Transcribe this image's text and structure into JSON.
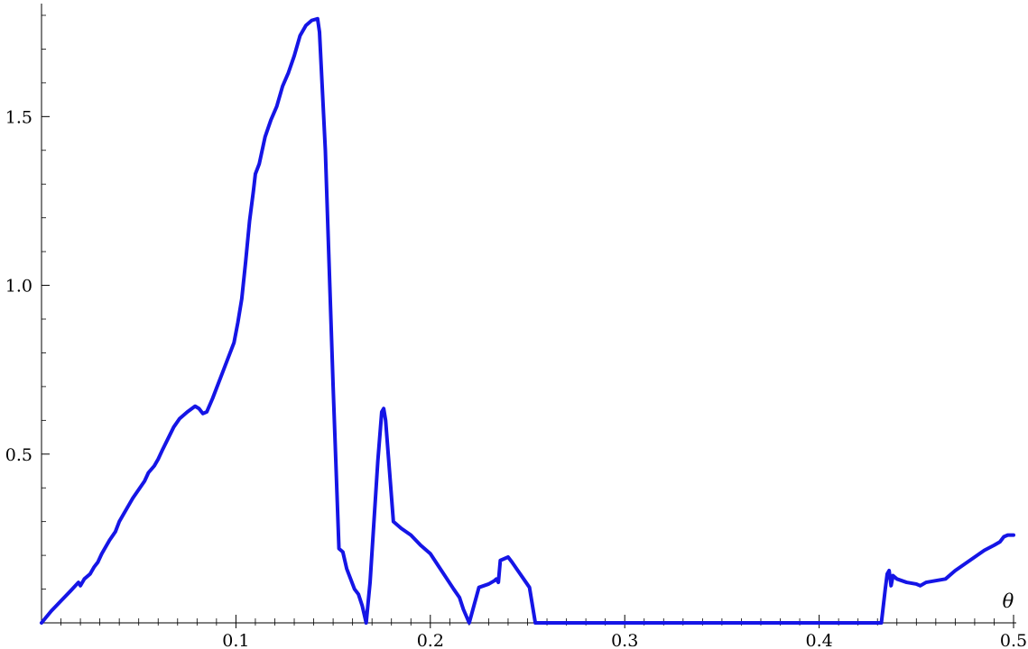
{
  "chart_data": {
    "type": "line",
    "title": "",
    "xlabel": "θ",
    "ylabel": "",
    "xlim": [
      0,
      0.5
    ],
    "ylim": [
      0,
      1.8
    ],
    "x_ticks": [
      {
        "value": 0.1,
        "label": "0.1"
      },
      {
        "value": 0.2,
        "label": "0.2"
      },
      {
        "value": 0.3,
        "label": "0.3"
      },
      {
        "value": 0.4,
        "label": "0.4"
      },
      {
        "value": 0.5,
        "label": "0.5"
      }
    ],
    "y_ticks": [
      {
        "value": 0.5,
        "label": "0.5"
      },
      {
        "value": 1.0,
        "label": "1.0"
      },
      {
        "value": 1.5,
        "label": "1.5"
      }
    ],
    "grid": false,
    "legend": "none",
    "line_color": "#1515e6",
    "series": [
      {
        "x": [
          0,
          0.005,
          0.01,
          0.015,
          0.019,
          0.02,
          0.022,
          0.025,
          0.027,
          0.029,
          0.031,
          0.033,
          0.035,
          0.038,
          0.04,
          0.042,
          0.045,
          0.047,
          0.05,
          0.053,
          0.055,
          0.058,
          0.06,
          0.062,
          0.065,
          0.068,
          0.071,
          0.075,
          0.079,
          0.081,
          0.083,
          0.085,
          0.088,
          0.09,
          0.093,
          0.096,
          0.099,
          0.101,
          0.103,
          0.105,
          0.107,
          0.109,
          0.11,
          0.112,
          0.115,
          0.118,
          0.121,
          0.124,
          0.127,
          0.13,
          0.133,
          0.136,
          0.139,
          0.142,
          0.143,
          0.146,
          0.15,
          0.153,
          0.155,
          0.157,
          0.159,
          0.161,
          0.163,
          0.165,
          0.167,
          0.169,
          0.171,
          0.173,
          0.175,
          0.176,
          0.177,
          0.179,
          0.181,
          0.185,
          0.19,
          0.195,
          0.2,
          0.204,
          0.208,
          0.212,
          0.215,
          0.217,
          0.22,
          0.225,
          0.23,
          0.233,
          0.234,
          0.235,
          0.236,
          0.24,
          0.242,
          0.245,
          0.248,
          0.251,
          0.254,
          0.255,
          0.26,
          0.3,
          0.35,
          0.4,
          0.432,
          0.434,
          0.435,
          0.436,
          0.437,
          0.438,
          0.44,
          0.445,
          0.45,
          0.452,
          0.455,
          0.46,
          0.465,
          0.47,
          0.475,
          0.48,
          0.485,
          0.49,
          0.493,
          0.495,
          0.497,
          0.5
        ],
        "y": [
          0,
          0.035,
          0.065,
          0.095,
          0.12,
          0.11,
          0.13,
          0.145,
          0.165,
          0.18,
          0.205,
          0.225,
          0.245,
          0.27,
          0.3,
          0.32,
          0.35,
          0.37,
          0.395,
          0.42,
          0.445,
          0.465,
          0.485,
          0.51,
          0.545,
          0.58,
          0.605,
          0.625,
          0.642,
          0.635,
          0.62,
          0.625,
          0.665,
          0.695,
          0.74,
          0.785,
          0.83,
          0.89,
          0.96,
          1.07,
          1.19,
          1.28,
          1.33,
          1.36,
          1.44,
          1.49,
          1.53,
          1.59,
          1.63,
          1.68,
          1.74,
          1.77,
          1.785,
          1.79,
          1.75,
          1.4,
          0.7,
          0.22,
          0.21,
          0.16,
          0.13,
          0.1,
          0.085,
          0.05,
          0,
          0.12,
          0.3,
          0.48,
          0.625,
          0.635,
          0.6,
          0.45,
          0.3,
          0.28,
          0.26,
          0.23,
          0.205,
          0.17,
          0.135,
          0.1,
          0.075,
          0.04,
          0,
          0.105,
          0.115,
          0.125,
          0.13,
          0.12,
          0.185,
          0.195,
          0.18,
          0.155,
          0.13,
          0.105,
          0,
          0,
          0,
          0,
          0,
          0,
          0,
          0.1,
          0.145,
          0.155,
          0.11,
          0.14,
          0.13,
          0.12,
          0.115,
          0.11,
          0.12,
          0.125,
          0.13,
          0.155,
          0.175,
          0.195,
          0.215,
          0.23,
          0.24,
          0.255,
          0.26,
          0.26
        ]
      }
    ]
  }
}
